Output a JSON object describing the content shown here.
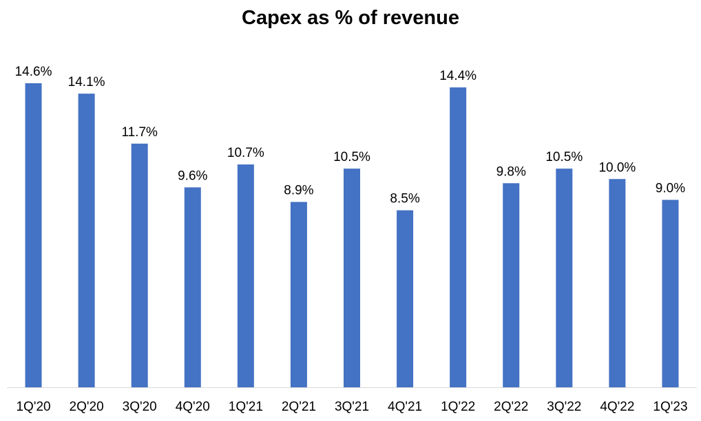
{
  "chart_data": {
    "type": "bar",
    "title": "Capex as % of revenue",
    "xlabel": "",
    "ylabel": "",
    "categories": [
      "1Q'20",
      "2Q'20",
      "3Q'20",
      "4Q'20",
      "1Q'21",
      "2Q'21",
      "3Q'21",
      "4Q'21",
      "1Q'22",
      "2Q'22",
      "3Q'22",
      "4Q'22",
      "1Q'23"
    ],
    "values": [
      14.6,
      14.1,
      11.7,
      9.6,
      10.7,
      8.9,
      10.5,
      8.5,
      14.4,
      9.8,
      10.5,
      10.0,
      9.0
    ],
    "labels": [
      "14.6%",
      "14.1%",
      "11.7%",
      "9.6%",
      "10.7%",
      "8.9%",
      "10.5%",
      "8.5%",
      "14.4%",
      "9.8%",
      "10.5%",
      "10.0%",
      "9.0%"
    ],
    "ylim": [
      0,
      14.6
    ],
    "grid": false,
    "legend": "none",
    "bar_color": "#4472C4",
    "axis_color": "#D9D9D9"
  }
}
